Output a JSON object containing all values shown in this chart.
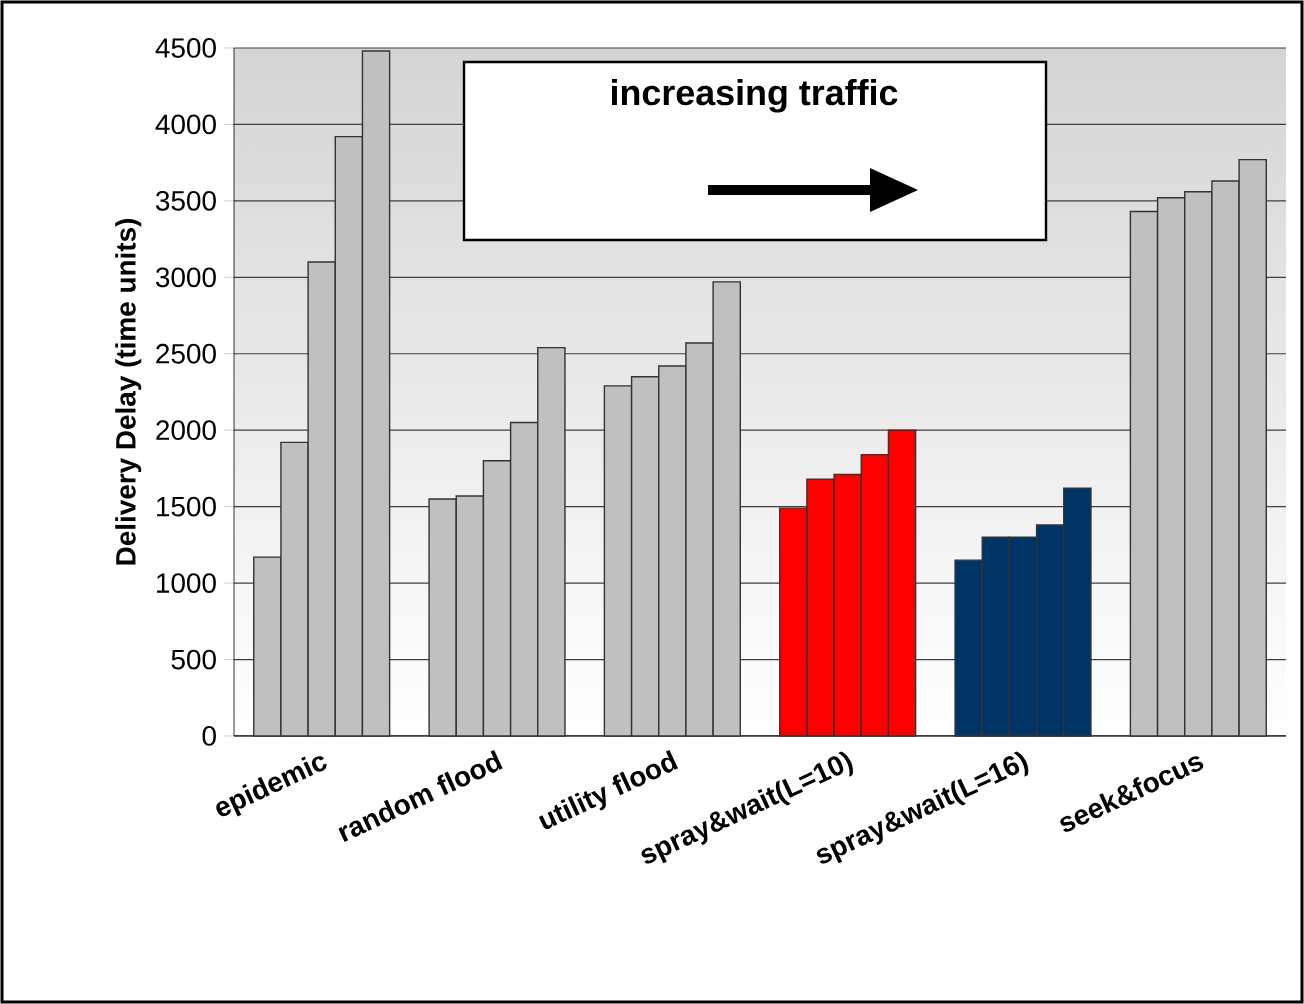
{
  "chart_data": {
    "type": "bar",
    "ylabel": "Delivery Delay (time units)",
    "categories": [
      "epidemic",
      "random flood",
      "utility flood",
      "spray&wait(L=10)",
      "spray&wait(L=16)",
      "seek&focus"
    ],
    "series": [
      {
        "colors": [
          "#c0c0c0",
          "#c0c0c0",
          "#c0c0c0",
          "#ff0000",
          "#003366",
          "#c0c0c0"
        ],
        "values": [
          1170,
          1550,
          2290,
          1490,
          1150,
          3430
        ]
      },
      {
        "colors": [
          "#c0c0c0",
          "#c0c0c0",
          "#c0c0c0",
          "#ff0000",
          "#003366",
          "#c0c0c0"
        ],
        "values": [
          1920,
          1570,
          2350,
          1680,
          1300,
          3520
        ]
      },
      {
        "colors": [
          "#c0c0c0",
          "#c0c0c0",
          "#c0c0c0",
          "#ff0000",
          "#003366",
          "#c0c0c0"
        ],
        "values": [
          3100,
          1800,
          2420,
          1710,
          1300,
          3560
        ]
      },
      {
        "colors": [
          "#c0c0c0",
          "#c0c0c0",
          "#c0c0c0",
          "#ff0000",
          "#003366",
          "#c0c0c0"
        ],
        "values": [
          3920,
          2050,
          2570,
          1840,
          1380,
          3630
        ]
      },
      {
        "colors": [
          "#c0c0c0",
          "#c0c0c0",
          "#c0c0c0",
          "#ff0000",
          "#003366",
          "#c0c0c0"
        ],
        "values": [
          4480,
          2540,
          2970,
          2000,
          1620,
          3770
        ]
      }
    ],
    "ylim": [
      0,
      4500
    ],
    "yticks": [
      0,
      500,
      1000,
      1500,
      2000,
      2500,
      3000,
      3500,
      4000,
      4500
    ],
    "grid": "y",
    "annotations": [
      "increasing traffic"
    ]
  }
}
